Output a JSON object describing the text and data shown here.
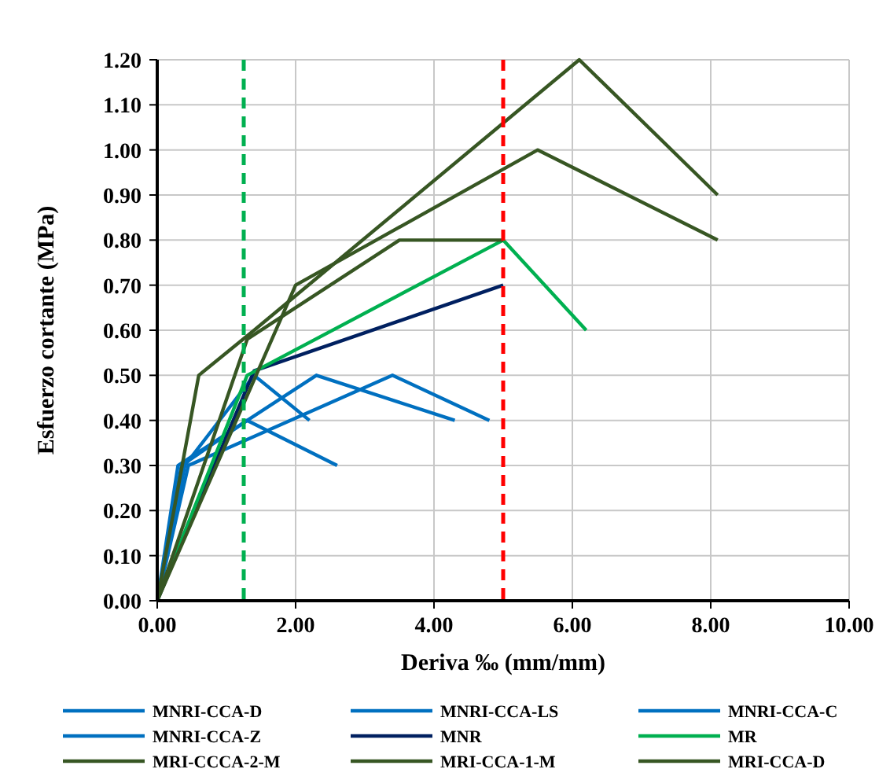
{
  "chart_data": {
    "type": "line",
    "xlabel": "Deriva ‰ (mm/mm)",
    "ylabel": "Esfuerzo cortante (MPa)",
    "xlim": [
      0,
      10
    ],
    "xticks": [
      {
        "value": 0,
        "label": "0.00"
      },
      {
        "value": 2,
        "label": "2.00"
      },
      {
        "value": 4,
        "label": "4.00"
      },
      {
        "value": 6,
        "label": "6.00"
      },
      {
        "value": 8,
        "label": "8.00"
      },
      {
        "value": 10,
        "label": "10.00"
      }
    ],
    "ylim": [
      0,
      1.2
    ],
    "yticks": [
      {
        "value": 0,
        "label": "0.00"
      },
      {
        "value": 0.1,
        "label": "0.10"
      },
      {
        "value": 0.2,
        "label": "0.20"
      },
      {
        "value": 0.3,
        "label": "0.30"
      },
      {
        "value": 0.4,
        "label": "0.40"
      },
      {
        "value": 0.5,
        "label": "0.50"
      },
      {
        "value": 0.6,
        "label": "0.60"
      },
      {
        "value": 0.7,
        "label": "0.70"
      },
      {
        "value": 0.8,
        "label": "0.80"
      },
      {
        "value": 0.9,
        "label": "0.90"
      },
      {
        "value": 1.0,
        "label": "1.00"
      },
      {
        "value": 1.1,
        "label": "1.10"
      },
      {
        "value": 1.2,
        "label": "1.20"
      }
    ],
    "grid": true,
    "legend": "bottom",
    "marker": "none",
    "line_style": "solid",
    "ref_lines": [
      {
        "axis": "x",
        "value": 1.25,
        "color": "#00b050",
        "line_style": "dashed"
      },
      {
        "axis": "x",
        "value": 5.0,
        "color": "#ff0000",
        "line_style": "dashed"
      }
    ],
    "series": [
      {
        "name": "MNRI-CCA-D",
        "color": "#0070c0",
        "x": [
          0,
          0.3,
          2.3,
          4.3
        ],
        "values": [
          0,
          0.3,
          0.5,
          0.4
        ]
      },
      {
        "name": "MNRI-CCA-LS",
        "color": "#0070c0",
        "x": [
          0,
          0.45,
          3.4,
          4.8
        ],
        "values": [
          0,
          0.3,
          0.5,
          0.4
        ]
      },
      {
        "name": "MNRI-CCA-C",
        "color": "#0070c0",
        "x": [
          0,
          0.4,
          1.4,
          2.2
        ],
        "values": [
          0,
          0.3,
          0.5,
          0.4
        ]
      },
      {
        "name": "MNRI-CCA-Z",
        "color": "#0070c0",
        "x": [
          0,
          0.35,
          1.3,
          2.6
        ],
        "values": [
          0,
          0.3,
          0.4,
          0.3
        ]
      },
      {
        "name": "MNR",
        "color": "#002060",
        "x": [
          0,
          1.4,
          5.0
        ],
        "values": [
          0,
          0.51,
          0.7
        ]
      },
      {
        "name": "MR",
        "color": "#00b050",
        "x": [
          0,
          1.3,
          5.0,
          6.2
        ],
        "values": [
          0,
          0.5,
          0.8,
          0.6
        ]
      },
      {
        "name": "MRI-CCCA-2-M",
        "color": "#375623",
        "x": [
          0,
          0.6,
          1.4,
          6.1,
          8.1
        ],
        "values": [
          0,
          0.5,
          0.6,
          1.2,
          0.9
        ]
      },
      {
        "name": "MRI-CCA-1-M",
        "color": "#375623",
        "x": [
          0,
          2.0,
          5.5,
          8.1
        ],
        "values": [
          0,
          0.7,
          1.0,
          0.8
        ]
      },
      {
        "name": "MRI-CCA-D",
        "color": "#375623",
        "x": [
          0,
          1.3,
          3.5,
          5.0
        ],
        "values": [
          0,
          0.58,
          0.8,
          0.8
        ]
      }
    ]
  }
}
